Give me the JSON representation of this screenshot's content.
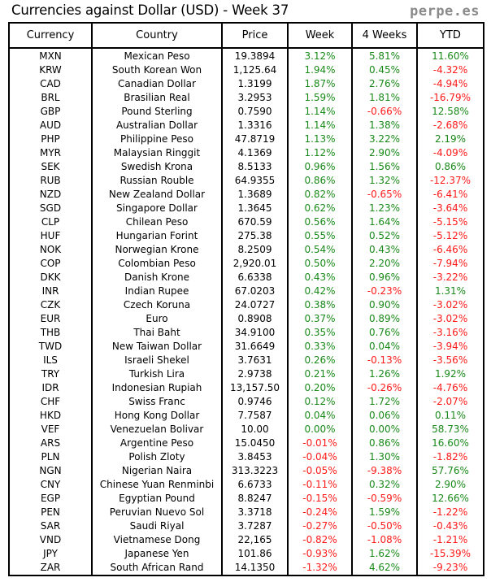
{
  "title": "Currencies against Dollar (USD) - Week 37",
  "brand": "perpe.es",
  "colors": {
    "positive": "#1a8a1a",
    "negative": "#ff1a1a",
    "border": "#000000",
    "brand": "#8a8a8a"
  },
  "headers": [
    "Currency",
    "Country",
    "Price",
    "Week",
    "4 Weeks",
    "YTD"
  ],
  "rows": [
    [
      "MXN",
      "Mexican Peso",
      "19.3894",
      "3.12%",
      "5.81%",
      "11.60%"
    ],
    [
      "KRW",
      "South Korean Won",
      "1,125.64",
      "1.94%",
      "0.45%",
      "-4.32%"
    ],
    [
      "CAD",
      "Canadian Dollar",
      "1.3199",
      "1.87%",
      "2.76%",
      "-4.94%"
    ],
    [
      "BRL",
      "Brasilian Real",
      "3.2953",
      "1.59%",
      "1.81%",
      "-16.79%"
    ],
    [
      "GBP",
      "Pound Sterling",
      "0.7590",
      "1.14%",
      "-0.66%",
      "12.58%"
    ],
    [
      "AUD",
      "Australian Dollar",
      "1.3316",
      "1.14%",
      "1.38%",
      "-2.68%"
    ],
    [
      "PHP",
      "Philippine Peso",
      "47.8719",
      "1.13%",
      "3.22%",
      "2.19%"
    ],
    [
      "MYR",
      "Malaysian Ringgit",
      "4.1369",
      "1.12%",
      "2.90%",
      "-4.09%"
    ],
    [
      "SEK",
      "Swedish Krona",
      "8.5133",
      "0.96%",
      "1.56%",
      "0.86%"
    ],
    [
      "RUB",
      "Russian Rouble",
      "64.9355",
      "0.86%",
      "1.32%",
      "-12.37%"
    ],
    [
      "NZD",
      "New Zealand Dollar",
      "1.3689",
      "0.82%",
      "-0.65%",
      "-6.41%"
    ],
    [
      "SGD",
      "Singapore Dollar",
      "1.3645",
      "0.62%",
      "1.23%",
      "-3.64%"
    ],
    [
      "CLP",
      "Chilean Peso",
      "670.59",
      "0.56%",
      "1.64%",
      "-5.15%"
    ],
    [
      "HUF",
      "Hungarian Forint",
      "275.38",
      "0.55%",
      "0.52%",
      "-5.12%"
    ],
    [
      "NOK",
      "Norwegian Krone",
      "8.2509",
      "0.54%",
      "0.43%",
      "-6.46%"
    ],
    [
      "COP",
      "Colombian Peso",
      "2,920.01",
      "0.50%",
      "2.20%",
      "-7.94%"
    ],
    [
      "DKK",
      "Danish Krone",
      "6.6338",
      "0.43%",
      "0.96%",
      "-3.22%"
    ],
    [
      "INR",
      "Indian Rupee",
      "67.0203",
      "0.42%",
      "-0.23%",
      "1.31%"
    ],
    [
      "CZK",
      "Czech Koruna",
      "24.0727",
      "0.38%",
      "0.90%",
      "-3.02%"
    ],
    [
      "EUR",
      "Euro",
      "0.8908",
      "0.37%",
      "0.89%",
      "-3.02%"
    ],
    [
      "THB",
      "Thai Baht",
      "34.9100",
      "0.35%",
      "0.76%",
      "-3.16%"
    ],
    [
      "TWD",
      "New Taiwan Dollar",
      "31.6649",
      "0.33%",
      "0.04%",
      "-3.94%"
    ],
    [
      "ILS",
      "Israeli Shekel",
      "3.7631",
      "0.26%",
      "-0.13%",
      "-3.56%"
    ],
    [
      "TRY",
      "Turkish Lira",
      "2.9738",
      "0.21%",
      "1.26%",
      "1.92%"
    ],
    [
      "IDR",
      "Indonesian Rupiah",
      "13,157.50",
      "0.20%",
      "-0.26%",
      "-4.76%"
    ],
    [
      "CHF",
      "Swiss Franc",
      "0.9746",
      "0.12%",
      "1.72%",
      "-2.07%"
    ],
    [
      "HKD",
      "Hong Kong Dollar",
      "7.7587",
      "0.04%",
      "0.06%",
      "0.11%"
    ],
    [
      "VEF",
      "Venezuelan Bolivar",
      "10.00",
      "0.00%",
      "0.00%",
      "58.73%"
    ],
    [
      "ARS",
      "Argentine Peso",
      "15.0450",
      "-0.01%",
      "0.86%",
      "16.60%"
    ],
    [
      "PLN",
      "Polish Zloty",
      "3.8453",
      "-0.04%",
      "1.30%",
      "-1.82%"
    ],
    [
      "NGN",
      "Nigerian Naira",
      "313.3223",
      "-0.05%",
      "-9.38%",
      "57.76%"
    ],
    [
      "CNY",
      "Chinese Yuan Renminbi",
      "6.6733",
      "-0.11%",
      "0.32%",
      "2.90%"
    ],
    [
      "EGP",
      "Egyptian Pound",
      "8.8247",
      "-0.15%",
      "-0.59%",
      "12.66%"
    ],
    [
      "PEN",
      "Peruvian Nuevo Sol",
      "3.3718",
      "-0.24%",
      "1.59%",
      "-1.22%"
    ],
    [
      "SAR",
      "Saudi Riyal",
      "3.7287",
      "-0.27%",
      "-0.50%",
      "-0.43%"
    ],
    [
      "VND",
      "Vietnamese Dong",
      "22,165",
      "-0.82%",
      "-1.08%",
      "-1.21%"
    ],
    [
      "JPY",
      "Japanese Yen",
      "101.86",
      "-0.93%",
      "1.62%",
      "-15.39%"
    ],
    [
      "ZAR",
      "South African Rand",
      "14.1350",
      "-1.32%",
      "4.62%",
      "-9.23%"
    ]
  ]
}
